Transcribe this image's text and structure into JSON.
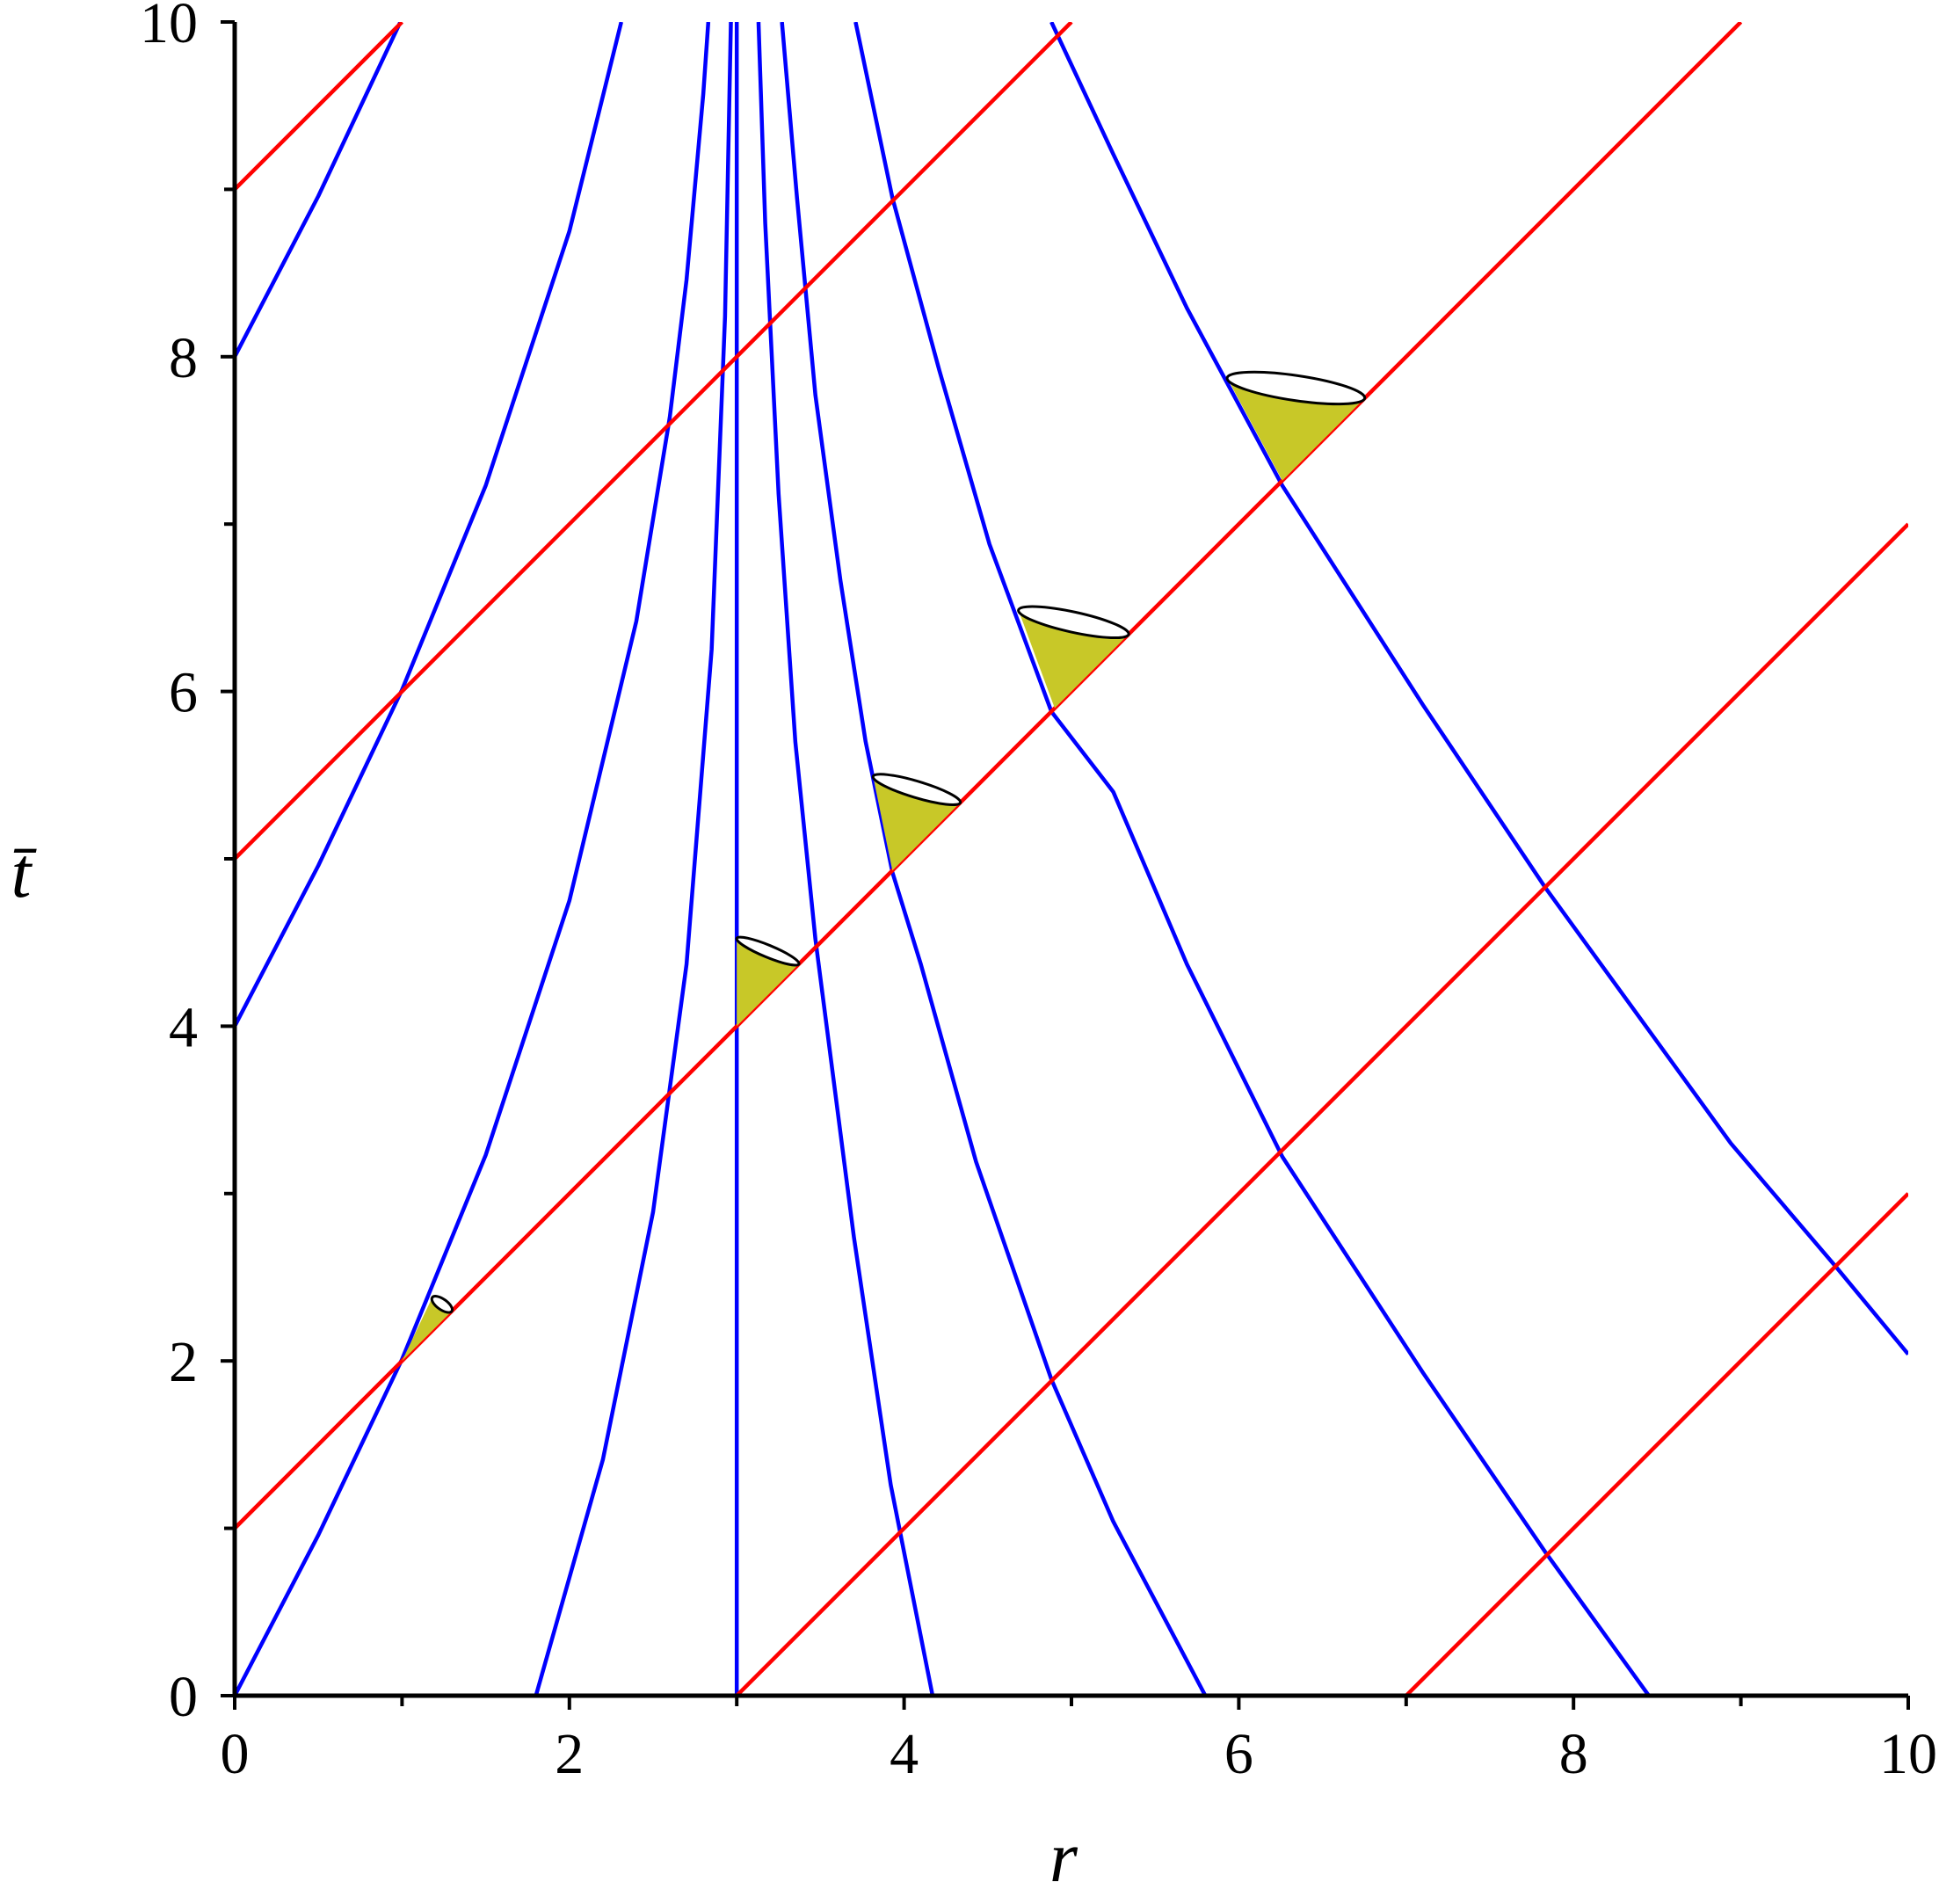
{
  "chart_data": {
    "type": "line",
    "xlabel": "r",
    "ylabel": "t̄",
    "xlim": [
      0,
      10
    ],
    "ylim": [
      0,
      10
    ],
    "xticks": [
      0,
      2,
      4,
      6,
      8,
      10
    ],
    "yticks": [
      0,
      2,
      4,
      6,
      8,
      10
    ],
    "xminorticks": [
      1,
      3,
      5,
      7,
      9
    ],
    "yminorticks": [
      1,
      3,
      5,
      7,
      9
    ],
    "series": [
      {
        "color": "#0000ff",
        "x": [
          0,
          0.5,
          1,
          1.5,
          2,
          2.4,
          2.6,
          2.7,
          2.8,
          2.83
        ],
        "values": [
          0,
          0.96,
          2.01,
          3.23,
          4.75,
          6.42,
          7.64,
          8.46,
          9.57,
          10
        ]
      },
      {
        "color": "#0000ff",
        "x": [
          0,
          0.5,
          1,
          1.5,
          2,
          2.31
        ],
        "values": [
          4,
          4.96,
          6.01,
          7.23,
          8.75,
          10
        ]
      },
      {
        "color": "#0000ff",
        "x": [
          0,
          0.5,
          0.99
        ],
        "values": [
          8,
          8.96,
          10
        ]
      },
      {
        "color": "#0000ff",
        "x": [
          1.8,
          2.2,
          2.5,
          2.7,
          2.85,
          2.93,
          2.965
        ],
        "values": [
          0,
          1.41,
          2.89,
          4.37,
          6.25,
          8.24,
          10
        ]
      },
      {
        "color": "#0000ff",
        "x": [
          3,
          3
        ],
        "values": [
          0,
          10
        ]
      },
      {
        "color": "#0000ff",
        "x": [
          4.17,
          3.92,
          3.7,
          3.47,
          3.35,
          3.25,
          3.17,
          3.13
        ],
        "values": [
          0,
          1.26,
          2.74,
          4.52,
          5.7,
          7.18,
          8.8,
          10
        ]
      },
      {
        "color": "#0000ff",
        "x": [
          5.8,
          5.25,
          4.88,
          4.43,
          4.1,
          3.93,
          3.77,
          3.62,
          3.47,
          3.36,
          3.27
        ],
        "values": [
          0,
          1.04,
          1.89,
          3.19,
          4.37,
          4.92,
          5.7,
          6.66,
          7.77,
          8.95,
          10
        ]
      },
      {
        "color": "#0000ff",
        "x": [
          8.45,
          7.83,
          7.1,
          6.26,
          5.69,
          5.25,
          4.88,
          4.51,
          4.21,
          3.93,
          3.71
        ],
        "values": [
          0,
          0.86,
          1.93,
          3.22,
          4.37,
          5.4,
          5.88,
          6.88,
          7.92,
          8.95,
          10
        ]
      },
      {
        "color": "#0000ff",
        "x": [
          10,
          9.57,
          8.94,
          7.83,
          7.1,
          6.26,
          5.69,
          5.25,
          4.88
        ],
        "values": [
          2.04,
          2.56,
          3.3,
          4.83,
          5.92,
          7.23,
          8.29,
          9.21,
          10
        ]
      },
      {
        "color": "#ff0000",
        "x": [
          0,
          1
        ],
        "values": [
          9,
          10
        ]
      },
      {
        "color": "#ff0000",
        "x": [
          0,
          5
        ],
        "values": [
          5,
          10
        ]
      },
      {
        "color": "#ff0000",
        "x": [
          0,
          9
        ],
        "values": [
          1,
          10
        ]
      },
      {
        "color": "#ff0000",
        "x": [
          3,
          10
        ],
        "values": [
          0,
          7
        ]
      },
      {
        "color": "#ff0000",
        "x": [
          7,
          10
        ],
        "values": [
          0,
          3
        ]
      }
    ],
    "cones": {
      "color": "#c8c828",
      "x": [
        1,
        3,
        3.93,
        4.9,
        6.26
      ],
      "values": [
        2,
        4,
        4.93,
        5.9,
        7.26
      ]
    }
  }
}
